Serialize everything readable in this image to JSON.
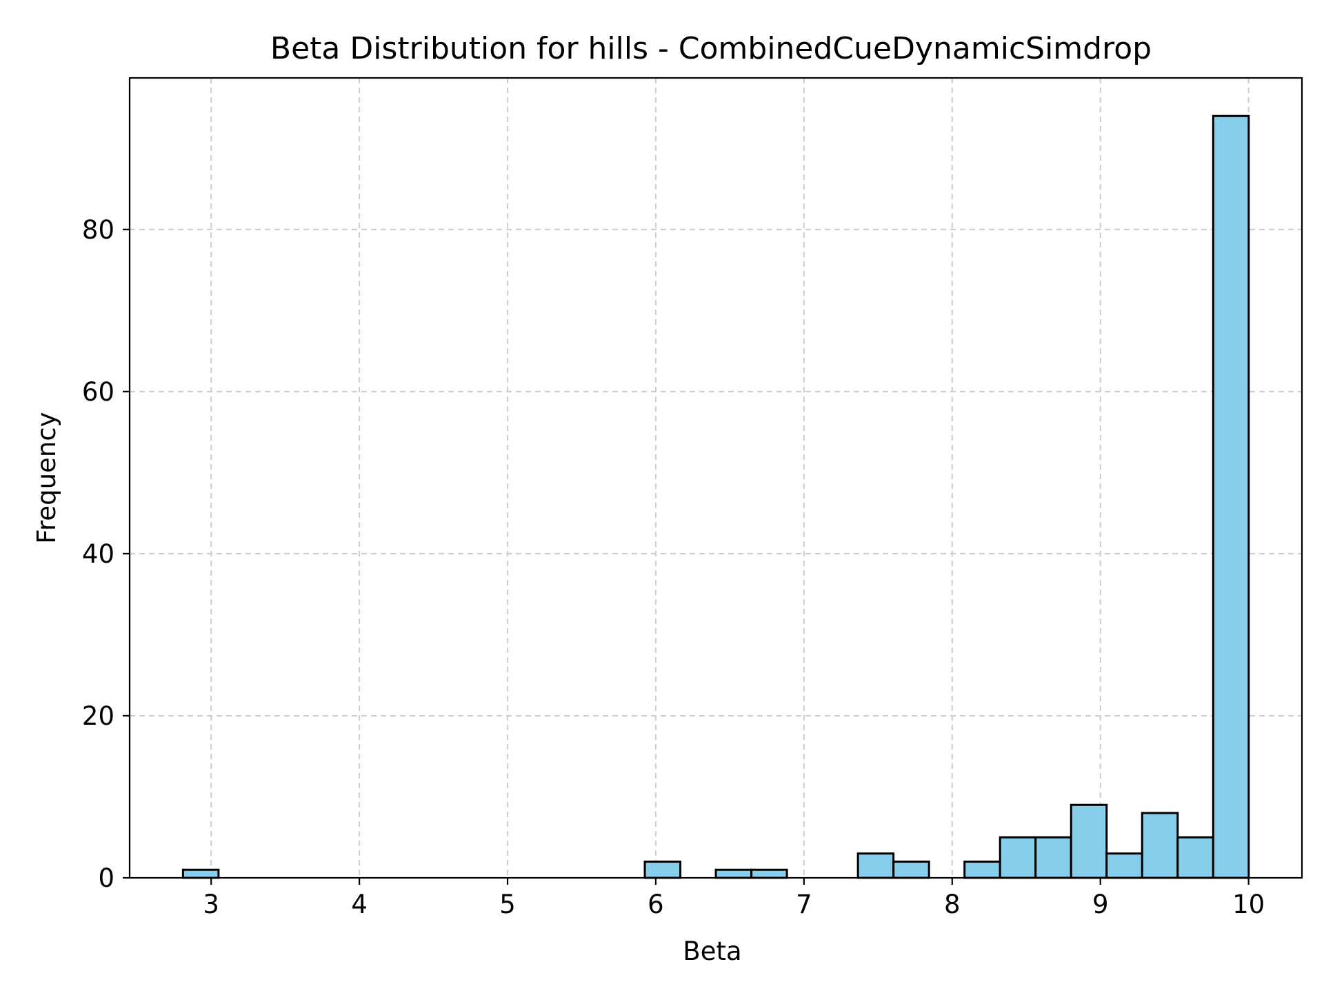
{
  "chart_data": {
    "type": "bar",
    "title": "Beta Distribution for hills - CombinedCueDynamicSimdrop",
    "xlabel": "Beta",
    "ylabel": "Frequency",
    "xlim": [
      2.45,
      10.36
    ],
    "ylim": [
      0,
      98.7
    ],
    "grid": true,
    "bar_color": "#87ceeb",
    "edge_color": "#000000",
    "grid_color": "#cccccc",
    "x_ticks": [
      3,
      4,
      5,
      6,
      7,
      8,
      9,
      10
    ],
    "x_tick_labels": [
      "3",
      "4",
      "5",
      "6",
      "7",
      "8",
      "9",
      "10"
    ],
    "y_ticks": [
      0,
      20,
      40,
      60,
      80
    ],
    "y_tick_labels": [
      "0",
      "20",
      "40",
      "60",
      "80"
    ],
    "bin_start": 2.81,
    "bin_width": 0.2397,
    "counts": [
      1,
      0,
      0,
      0,
      0,
      0,
      0,
      0,
      0,
      0,
      0,
      0,
      0,
      2,
      0,
      1,
      1,
      0,
      0,
      3,
      2,
      0,
      2,
      5,
      5,
      9,
      3,
      8,
      5,
      94
    ]
  }
}
